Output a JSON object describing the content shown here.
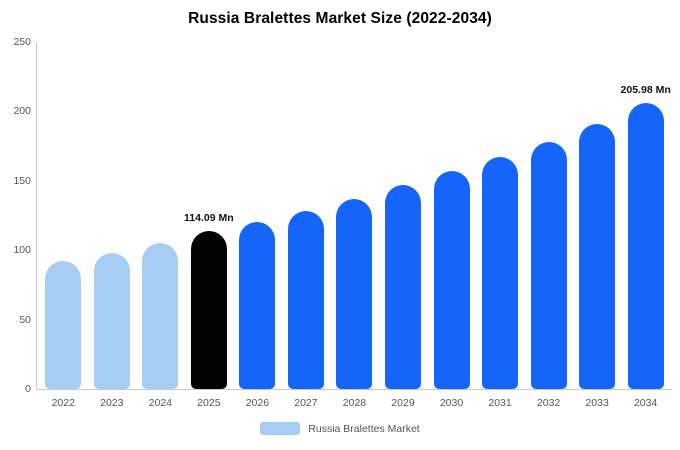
{
  "title": "Russia Bralettes Market Size (2022-2034)",
  "legend": {
    "label": "Russia Bralettes Market",
    "swatch_color": "#a7cdf5"
  },
  "colors": {
    "light_blue": "#a7cdf5",
    "bright_blue": "#1565fb",
    "highlight_black": "#000000",
    "axis_line": "#c9c9c9",
    "tick_text": "#555555"
  },
  "chart_data": {
    "type": "bar",
    "title": "Russia Bralettes Market Size (2022-2034)",
    "categories": [
      "2022",
      "2023",
      "2024",
      "2025",
      "2026",
      "2027",
      "2028",
      "2029",
      "2030",
      "2031",
      "2032",
      "2033",
      "2034"
    ],
    "values": [
      92,
      98,
      105,
      114.09,
      120,
      128,
      137,
      147,
      157,
      167,
      178,
      191,
      205.98
    ],
    "unit": "Mn",
    "xlabel": "",
    "ylabel": "",
    "ylim": [
      0,
      250
    ],
    "yticks": [
      0,
      50,
      100,
      150,
      200,
      250
    ],
    "grid": false,
    "legend_position": "bottom",
    "bar_color_keys": [
      "light_blue",
      "light_blue",
      "light_blue",
      "highlight_black",
      "bright_blue",
      "bright_blue",
      "bright_blue",
      "bright_blue",
      "bright_blue",
      "bright_blue",
      "bright_blue",
      "bright_blue",
      "bright_blue"
    ],
    "annotations": [
      {
        "category": "2025",
        "index": 3,
        "text": "114.09 Mn"
      },
      {
        "category": "2034",
        "index": 12,
        "text": "205.98 Mn"
      }
    ],
    "legend_entries": [
      "Russia Bralettes Market"
    ]
  }
}
